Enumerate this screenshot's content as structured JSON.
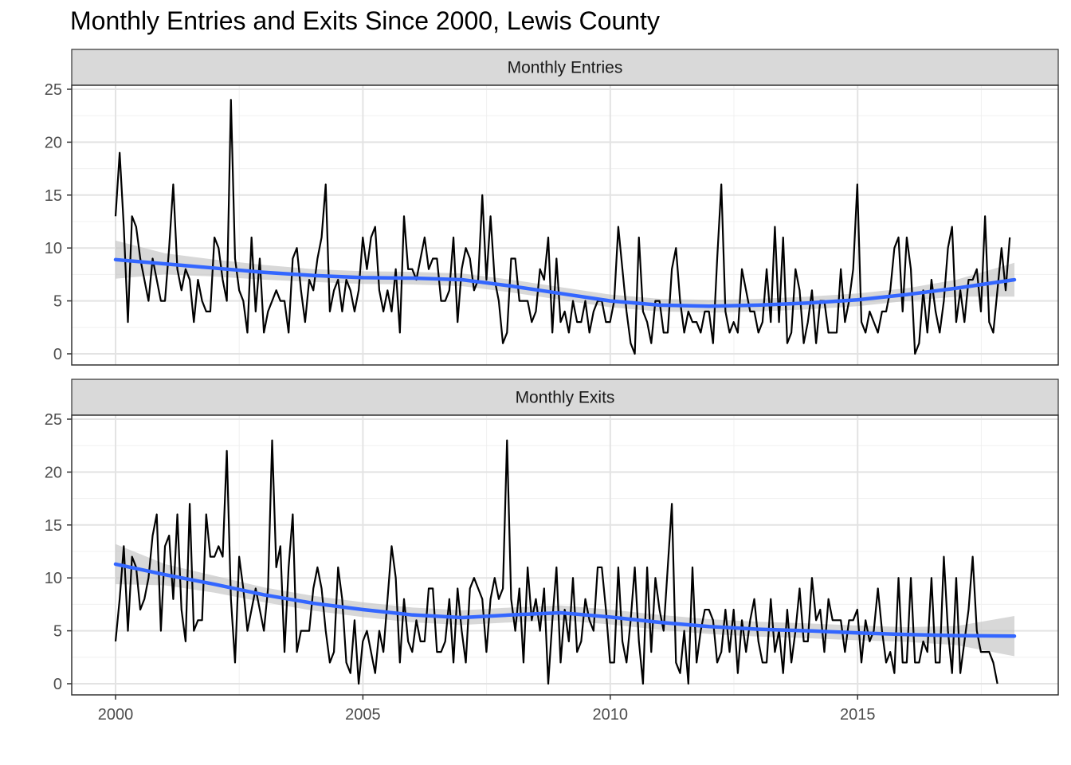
{
  "chart_data": {
    "type": "line",
    "title": "Monthly Entries and Exits Since 2000, Lewis County",
    "xlabel": "",
    "ylabel": "",
    "x_ticks": [
      2000,
      2005,
      2010,
      2015
    ],
    "y_ticks": [
      0,
      5,
      10,
      15,
      20,
      25
    ],
    "xlim": [
      2000,
      2018.17
    ],
    "ylim": [
      0,
      25
    ],
    "grid": true,
    "colors": {
      "line": "#000000",
      "smooth": "#3366ff",
      "ribbon": "#bebebe",
      "strip": "#d9d9d9"
    },
    "panels": [
      {
        "strip_label": "Monthly Entries",
        "series": {
          "x_start": 2000.0,
          "step": 0.0833,
          "values": [
            13,
            19,
            12,
            3,
            13,
            12,
            9,
            7,
            5,
            9,
            7,
            5,
            5,
            10,
            16,
            8,
            6,
            8,
            7,
            3,
            7,
            5,
            4,
            4,
            11,
            10,
            7,
            5,
            24,
            9,
            6,
            5,
            2,
            11,
            4,
            9,
            2,
            4,
            5,
            6,
            5,
            5,
            2,
            9,
            10,
            6,
            3,
            7,
            6,
            9,
            11,
            16,
            4,
            6,
            7,
            4,
            7,
            6,
            4,
            6,
            11,
            8,
            11,
            12,
            6,
            4,
            6,
            4,
            8,
            2,
            13,
            8,
            8,
            7,
            9,
            11,
            8,
            9,
            9,
            5,
            5,
            6,
            11,
            3,
            8,
            10,
            9,
            6,
            7,
            15,
            7,
            13,
            7,
            5,
            1,
            2,
            9,
            9,
            5,
            5,
            5,
            3,
            4,
            8,
            7,
            11,
            2,
            9,
            3,
            4,
            2,
            5,
            3,
            3,
            5,
            2,
            4,
            5,
            5,
            3,
            3,
            5,
            12,
            8,
            4,
            1,
            0,
            11,
            4,
            3,
            1,
            5,
            5,
            2,
            2,
            8,
            10,
            5,
            2,
            4,
            3,
            3,
            2,
            4,
            4,
            1,
            9,
            16,
            4,
            2,
            3,
            2,
            8,
            6,
            4,
            4,
            2,
            3,
            8,
            3,
            12,
            3,
            11,
            1,
            2,
            8,
            6,
            1,
            3,
            6,
            1,
            5,
            5,
            2,
            2,
            2,
            8,
            3,
            5,
            8,
            16,
            3,
            2,
            4,
            3,
            2,
            4,
            4,
            6,
            10,
            11,
            4,
            11,
            8,
            0,
            1,
            6,
            2,
            7,
            4,
            2,
            5,
            10,
            12,
            3,
            6,
            3,
            7,
            7,
            8,
            4,
            13,
            3,
            2,
            6,
            10,
            6,
            11
          ],
          "smooth": [
            [
              2000,
              8.9
            ],
            [
              2001,
              8.5
            ],
            [
              2002,
              8.1
            ],
            [
              2003,
              7.7
            ],
            [
              2004,
              7.4
            ],
            [
              2005,
              7.2
            ],
            [
              2006,
              7.15
            ],
            [
              2007,
              7.0
            ],
            [
              2008,
              6.4
            ],
            [
              2009,
              5.7
            ],
            [
              2010,
              5.0
            ],
            [
              2011,
              4.6
            ],
            [
              2012,
              4.5
            ],
            [
              2013,
              4.6
            ],
            [
              2014,
              4.8
            ],
            [
              2015,
              5.1
            ],
            [
              2016,
              5.6
            ],
            [
              2017,
              6.2
            ],
            [
              2018.17,
              7.0
            ]
          ],
          "ribbon_halfwidth": [
            1.8,
            1.0,
            0.8,
            0.7,
            0.6,
            0.6,
            0.6,
            0.6,
            0.6,
            0.6,
            0.6,
            0.6,
            0.6,
            0.6,
            0.6,
            0.6,
            0.6,
            0.8,
            1.6
          ]
        }
      },
      {
        "strip_label": "Monthly Exits",
        "series": {
          "x_start": 2000.0,
          "step": 0.0833,
          "values": [
            4,
            8,
            13,
            5,
            12,
            11,
            7,
            8,
            10,
            14,
            16,
            5,
            13,
            14,
            8,
            16,
            7,
            4,
            17,
            5,
            6,
            6,
            16,
            12,
            12,
            13,
            12,
            22,
            8,
            2,
            12,
            9,
            5,
            7,
            9,
            7,
            5,
            9,
            23,
            11,
            13,
            3,
            11,
            16,
            3,
            5,
            5,
            5,
            9,
            11,
            9,
            5,
            2,
            3,
            11,
            8,
            2,
            1,
            6,
            0,
            4,
            5,
            3,
            1,
            5,
            3,
            8,
            13,
            10,
            2,
            8,
            4,
            3,
            6,
            4,
            4,
            9,
            9,
            3,
            3,
            4,
            8,
            2,
            9,
            5,
            2,
            9,
            10,
            9,
            8,
            3,
            8,
            10,
            8,
            9,
            23,
            8,
            5,
            9,
            2,
            11,
            6,
            8,
            5,
            9,
            0,
            6,
            11,
            2,
            7,
            4,
            10,
            3,
            4,
            8,
            6,
            5,
            11,
            11,
            7,
            2,
            2,
            11,
            4,
            2,
            6,
            11,
            4,
            0,
            11,
            3,
            10,
            7,
            5,
            11,
            17,
            2,
            1,
            5,
            0,
            11,
            2,
            5,
            7,
            7,
            6,
            2,
            3,
            7,
            3,
            7,
            1,
            6,
            3,
            6,
            8,
            4,
            2,
            2,
            8,
            3,
            5,
            1,
            7,
            2,
            5,
            9,
            4,
            4,
            10,
            6,
            7,
            3,
            8,
            6,
            6,
            6,
            3,
            6,
            6,
            7,
            2,
            6,
            4,
            5,
            9,
            5,
            2,
            3,
            1,
            10,
            2,
            2,
            10,
            2,
            2,
            4,
            3,
            10,
            2,
            2,
            12,
            5,
            1,
            10,
            1,
            4,
            7,
            12,
            5,
            3,
            3,
            3,
            2,
            0
          ],
          "smooth": [
            [
              2000,
              11.3
            ],
            [
              2001,
              10.3
            ],
            [
              2002,
              9.4
            ],
            [
              2003,
              8.4
            ],
            [
              2004,
              7.6
            ],
            [
              2005,
              7.0
            ],
            [
              2006,
              6.5
            ],
            [
              2007,
              6.25
            ],
            [
              2008,
              6.5
            ],
            [
              2009,
              6.7
            ],
            [
              2010,
              6.3
            ],
            [
              2011,
              5.8
            ],
            [
              2012,
              5.4
            ],
            [
              2013,
              5.15
            ],
            [
              2014,
              5.0
            ],
            [
              2015,
              4.8
            ],
            [
              2016,
              4.65
            ],
            [
              2017,
              4.55
            ],
            [
              2018.17,
              4.5
            ]
          ],
          "ribbon_halfwidth": [
            1.9,
            1.0,
            0.8,
            0.7,
            0.7,
            0.7,
            0.7,
            0.7,
            0.7,
            0.7,
            0.7,
            0.7,
            0.7,
            0.7,
            0.7,
            0.7,
            0.7,
            0.9,
            1.9
          ]
        }
      }
    ]
  }
}
